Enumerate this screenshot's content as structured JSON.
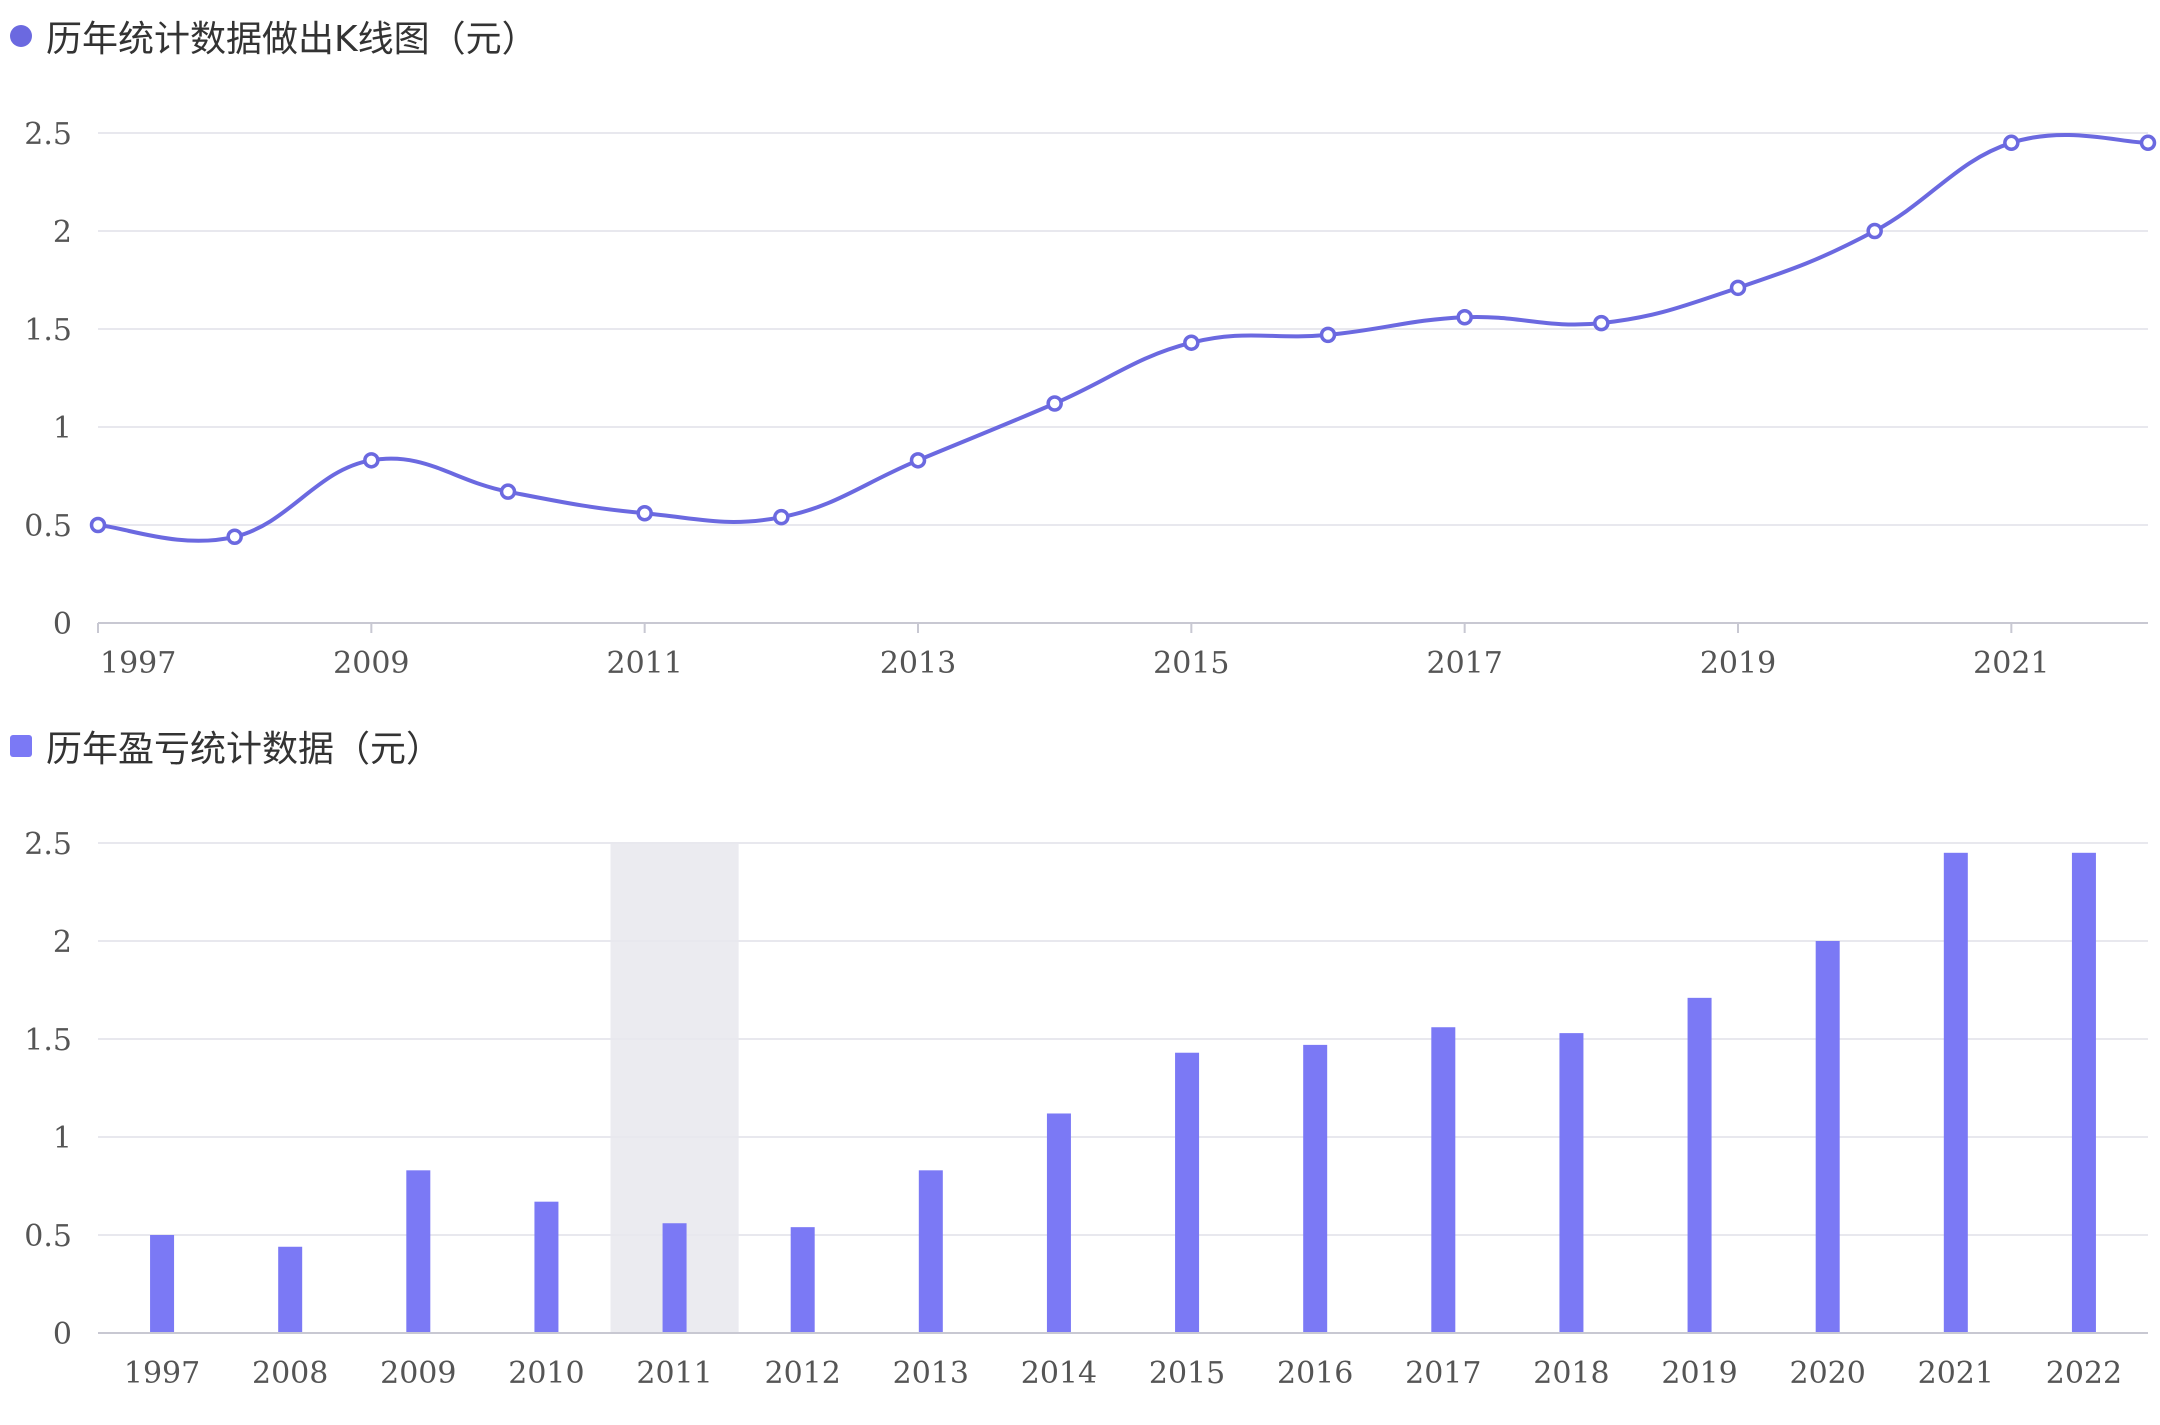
{
  "colors": {
    "line": "#6b69e0",
    "bar": "#7b79f5",
    "grid": "#e8e8ee",
    "axis": "#c8c8d2",
    "highlight": "#ebebf0"
  },
  "chart_data": [
    {
      "type": "line",
      "title": "历年统计数据做出K线图（元）",
      "legend_marker": "circle",
      "x_tick_labels": [
        "1997",
        "2009",
        "2011",
        "2013",
        "2015",
        "2017",
        "2019",
        "2021"
      ],
      "y_tick_labels": [
        "0",
        "0.5",
        "1",
        "1.5",
        "2",
        "2.5"
      ],
      "ylim": [
        0,
        2.5
      ],
      "smooth": true,
      "grid": true,
      "series": [
        {
          "values": [
            0.5,
            0.44,
            0.83,
            0.67,
            0.56,
            0.54,
            0.83,
            1.12,
            1.43,
            1.47,
            1.56,
            1.53,
            1.71,
            2.0,
            2.45,
            2.45
          ]
        }
      ]
    },
    {
      "type": "bar",
      "title": "历年盈亏统计数据（元）",
      "legend_marker": "square",
      "categories": [
        "1997",
        "2008",
        "2009",
        "2010",
        "2011",
        "2012",
        "2013",
        "2014",
        "2015",
        "2016",
        "2017",
        "2018",
        "2019",
        "2020",
        "2021",
        "2022"
      ],
      "y_tick_labels": [
        "0",
        "0.5",
        "1",
        "1.5",
        "2",
        "2.5"
      ],
      "ylim": [
        0,
        2.5
      ],
      "highlighted_category": "2011",
      "grid": true,
      "series": [
        {
          "values": [
            0.5,
            0.44,
            0.83,
            0.67,
            0.56,
            0.54,
            0.83,
            1.12,
            1.43,
            1.47,
            1.56,
            1.53,
            1.71,
            2.0,
            2.45,
            2.45
          ]
        }
      ]
    }
  ]
}
